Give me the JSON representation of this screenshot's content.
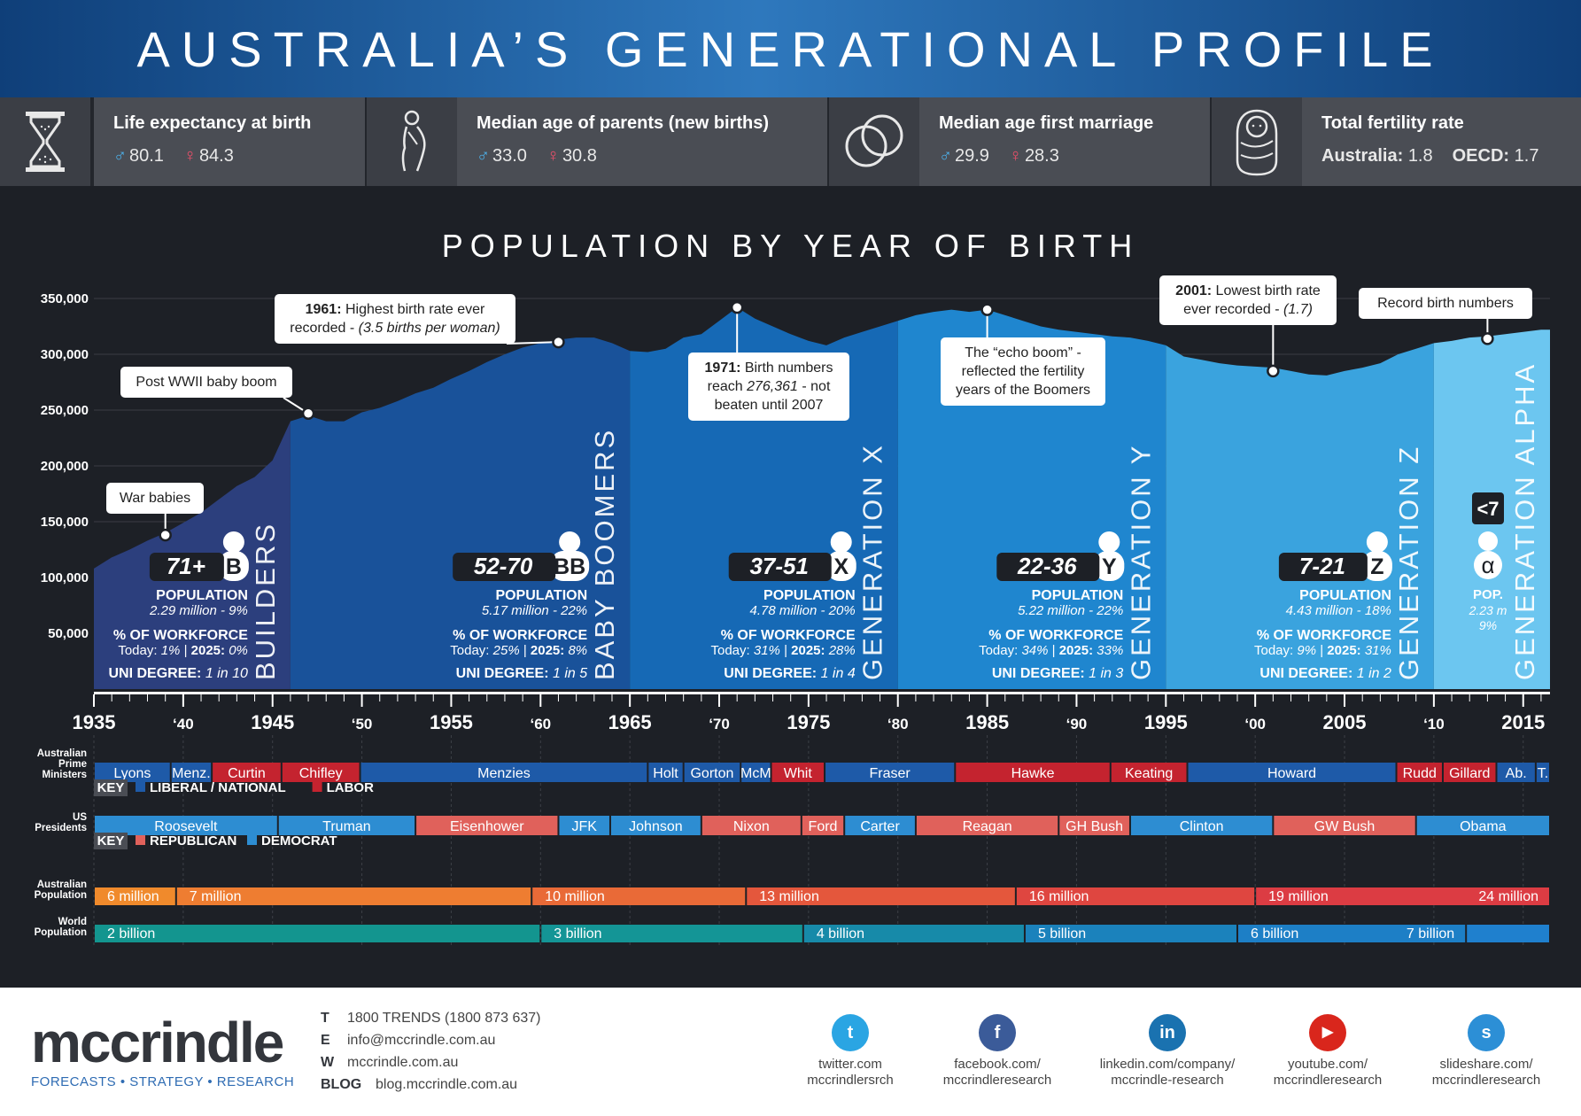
{
  "title": "AUSTRALIA’S GENERATIONAL PROFILE",
  "stats": [
    {
      "icon": "hourglass-icon",
      "title": "Life expectancy at birth",
      "male": "80.1",
      "female": "84.3"
    },
    {
      "icon": "pregnant-icon",
      "title": "Median age of parents (new births)",
      "male": "33.0",
      "female": "30.8"
    },
    {
      "icon": "rings-icon",
      "title": "Median age first marriage",
      "male": "29.9",
      "female": "28.3"
    },
    {
      "icon": "baby-icon",
      "title": "Total fertility rate",
      "australia_label": "Australia:",
      "australia": "1.8",
      "oecd_label": "OECD:",
      "oecd": "1.7"
    }
  ],
  "chart_data": {
    "type": "area",
    "title": "POPULATION BY YEAR OF BIRTH",
    "xlim": [
      1935,
      2016.5
    ],
    "ylim": [
      0,
      350000
    ],
    "y_ticks": [
      50000,
      100000,
      150000,
      200000,
      250000,
      300000,
      350000
    ],
    "y_tick_labels": [
      "50,000",
      "100,000",
      "150,000",
      "200,000",
      "250,000",
      "300,000",
      "350,000"
    ],
    "x_tick_labels": [
      {
        "year": 1935,
        "label": "1935",
        "major": true
      },
      {
        "year": 1940,
        "label": "‘40",
        "major": false
      },
      {
        "year": 1945,
        "label": "1945",
        "major": true
      },
      {
        "year": 1950,
        "label": "‘50",
        "major": false
      },
      {
        "year": 1955,
        "label": "1955",
        "major": true
      },
      {
        "year": 1960,
        "label": "‘60",
        "major": false
      },
      {
        "year": 1965,
        "label": "1965",
        "major": true
      },
      {
        "year": 1970,
        "label": "‘70",
        "major": false
      },
      {
        "year": 1975,
        "label": "1975",
        "major": true
      },
      {
        "year": 1980,
        "label": "‘80",
        "major": false
      },
      {
        "year": 1985,
        "label": "1985",
        "major": true
      },
      {
        "year": 1990,
        "label": "‘90",
        "major": false
      },
      {
        "year": 1995,
        "label": "1995",
        "major": true
      },
      {
        "year": 2000,
        "label": "‘00",
        "major": false
      },
      {
        "year": 2005,
        "label": "2005",
        "major": true
      },
      {
        "year": 2010,
        "label": "‘10",
        "major": false
      },
      {
        "year": 2015,
        "label": "2015",
        "major": true
      }
    ],
    "series": [
      {
        "x": [
          1935,
          1936,
          1937,
          1938,
          1939,
          1940,
          1941,
          1942,
          1943,
          1944,
          1945,
          1946,
          1947,
          1948,
          1949,
          1950,
          1951,
          1952,
          1953,
          1954,
          1955,
          1956,
          1957,
          1958,
          1959,
          1960,
          1961,
          1962,
          1963,
          1964,
          1965,
          1966,
          1967,
          1968,
          1969,
          1970,
          1971,
          1972,
          1973,
          1974,
          1975,
          1976,
          1977,
          1978,
          1979,
          1980,
          1981,
          1982,
          1983,
          1984,
          1985,
          1986,
          1987,
          1988,
          1989,
          1990,
          1991,
          1992,
          1993,
          1994,
          1995,
          1996,
          1997,
          1998,
          1999,
          2000,
          2001,
          2002,
          2003,
          2004,
          2005,
          2006,
          2007,
          2008,
          2009,
          2010,
          2011,
          2012,
          2013,
          2014,
          2015,
          2016
        ],
        "values": [
          108000,
          118000,
          125000,
          133000,
          140000,
          149000,
          158000,
          170000,
          182000,
          190000,
          205000,
          240000,
          245000,
          240000,
          240000,
          248000,
          252000,
          258000,
          265000,
          270000,
          278000,
          285000,
          293000,
          300000,
          306000,
          310000,
          313000,
          315000,
          315000,
          310000,
          303000,
          302000,
          305000,
          315000,
          318000,
          330000,
          342000,
          332000,
          325000,
          318000,
          312000,
          308000,
          315000,
          320000,
          325000,
          330000,
          335000,
          338000,
          340000,
          338000,
          340000,
          335000,
          330000,
          325000,
          322000,
          320000,
          318000,
          316000,
          315000,
          312000,
          308000,
          298000,
          295000,
          292000,
          290000,
          289000,
          288000,
          285000,
          282000,
          281000,
          285000,
          288000,
          292000,
          300000,
          305000,
          310000,
          312000,
          315000,
          316000,
          318000,
          320000,
          322000
        ]
      }
    ],
    "generations": [
      {
        "name": "BUILDERS",
        "start": 1935,
        "end": 1946,
        "color": "#2c3f7d",
        "age": "71+",
        "letter": "B",
        "pop_label": "POPULATION",
        "pop": "2.29 million - 9%",
        "workforce_label": "% OF WORKFORCE",
        "today_label": "Today:",
        "today": "1%",
        "sep": "|",
        "future_label": "2025:",
        "future": "0%",
        "uni_label": "UNI DEGREE:",
        "uni": "1 in 10"
      },
      {
        "name": "BABY BOOMERS",
        "start": 1946,
        "end": 1965,
        "color": "#19529a",
        "age": "52-70",
        "letter": "BB",
        "pop_label": "POPULATION",
        "pop": "5.17 million - 22%",
        "workforce_label": "% OF WORKFORCE",
        "today_label": "Today:",
        "today": "25%",
        "sep": "|",
        "future_label": "2025:",
        "future": "8%",
        "uni_label": "UNI DEGREE:",
        "uni": "1 in 5"
      },
      {
        "name": "GENERATION X",
        "start": 1965,
        "end": 1980,
        "color": "#1669b5",
        "age": "37-51",
        "letter": "X",
        "pop_label": "POPULATION",
        "pop": "4.78 million - 20%",
        "workforce_label": "% OF WORKFORCE",
        "today_label": "Today:",
        "today": "31%",
        "sep": "|",
        "future_label": "2025:",
        "future": "28%",
        "uni_label": "UNI DEGREE:",
        "uni": "1 in 4"
      },
      {
        "name": "GENERATION Y",
        "start": 1980,
        "end": 1995,
        "color": "#1f86cf",
        "age": "22-36",
        "letter": "Y",
        "pop_label": "POPULATION",
        "pop": "5.22 million - 22%",
        "workforce_label": "% OF WORKFORCE",
        "today_label": "Today:",
        "today": "34%",
        "sep": "|",
        "future_label": "2025:",
        "future": "33%",
        "uni_label": "UNI DEGREE:",
        "uni": "1 in 3"
      },
      {
        "name": "GENERATION Z",
        "start": 1995,
        "end": 2010,
        "color": "#3aa3de",
        "age": "7-21",
        "letter": "Z",
        "pop_label": "POPULATION",
        "pop": "4.43 million - 18%",
        "workforce_label": "% OF WORKFORCE",
        "today_label": "Today:",
        "today": "9%",
        "sep": "|",
        "future_label": "2025:",
        "future": "31%",
        "uni_label": "UNI DEGREE:",
        "uni": "1 in 2"
      },
      {
        "name": "GENERATION ALPHA",
        "start": 2010,
        "end": 2016.5,
        "color": "#6cc6f0",
        "age": "<7",
        "letter": "α",
        "pop_label": "POP.",
        "pop": "2.23 m",
        "pop2": "9%"
      }
    ],
    "annotations": [
      {
        "year": 1939,
        "value": 138000,
        "parts": [
          {
            "t": "War babies"
          }
        ]
      },
      {
        "year": 1947,
        "value": 247000,
        "parts": [
          {
            "t": "Post WWII baby boom"
          }
        ]
      },
      {
        "year": 1961,
        "value": 311000,
        "parts": [
          {
            "t": "1961:",
            "b": true
          },
          {
            "t": " Highest birth rate ever"
          },
          {
            "t": "\n"
          },
          {
            "t": "recorded - "
          },
          {
            "t": "(3.5 births per woman)",
            "i": true
          }
        ]
      },
      {
        "year": 1971,
        "value": 342000,
        "parts": [
          {
            "t": "1971:",
            "b": true
          },
          {
            "t": " Birth numbers"
          },
          {
            "t": "\n"
          },
          {
            "t": "reach "
          },
          {
            "t": "276,361",
            "i": true
          },
          {
            "t": " - not"
          },
          {
            "t": "\n"
          },
          {
            "t": "beaten until 2007"
          }
        ]
      },
      {
        "year": 1985,
        "value": 340000,
        "parts": [
          {
            "t": "The “echo boom” -"
          },
          {
            "t": "\n"
          },
          {
            "t": "reflected the fertility"
          },
          {
            "t": "\n"
          },
          {
            "t": "years of the Boomers"
          }
        ]
      },
      {
        "year": 2001,
        "value": 285000,
        "parts": [
          {
            "t": "2001:",
            "b": true
          },
          {
            "t": " Lowest birth rate"
          },
          {
            "t": "\n"
          },
          {
            "t": "ever recorded - "
          },
          {
            "t": "(1.7)",
            "i": true
          }
        ]
      },
      {
        "year": 2013,
        "value": 314000,
        "parts": [
          {
            "t": "Record birth numbers"
          }
        ]
      }
    ],
    "timelines": [
      {
        "label": [
          "Australian",
          "Prime",
          "Ministers"
        ],
        "bars": [
          {
            "name": "Lyons",
            "start": 1935,
            "end": 1939.3,
            "party": "liberal"
          },
          {
            "name": "Menz.",
            "start": 1939.3,
            "end": 1941.6,
            "party": "liberal"
          },
          {
            "name": "Curtin",
            "start": 1941.6,
            "end": 1945.5,
            "party": "labor"
          },
          {
            "name": "Chifley",
            "start": 1945.5,
            "end": 1949.9,
            "party": "labor"
          },
          {
            "name": "Menzies",
            "start": 1949.9,
            "end": 1966,
            "party": "liberal"
          },
          {
            "name": "Holt",
            "start": 1966,
            "end": 1968,
            "party": "liberal"
          },
          {
            "name": "Gorton",
            "start": 1968,
            "end": 1971.2,
            "party": "liberal"
          },
          {
            "name": "McM",
            "start": 1971.2,
            "end": 1972.9,
            "party": "liberal"
          },
          {
            "name": "Whit",
            "start": 1972.9,
            "end": 1975.9,
            "party": "labor"
          },
          {
            "name": "Fraser",
            "start": 1975.9,
            "end": 1983.2,
            "party": "liberal"
          },
          {
            "name": "Hawke",
            "start": 1983.2,
            "end": 1991.9,
            "party": "labor"
          },
          {
            "name": "Keating",
            "start": 1991.9,
            "end": 1996.2,
            "party": "labor"
          },
          {
            "name": "Howard",
            "start": 1996.2,
            "end": 2007.9,
            "party": "liberal"
          },
          {
            "name": "Rudd",
            "start": 2007.9,
            "end": 2010.5,
            "party": "labor"
          },
          {
            "name": "Gillard",
            "start": 2010.5,
            "end": 2013.5,
            "party": "labor"
          },
          {
            "name": "Ab.",
            "start": 2013.5,
            "end": 2015.7,
            "party": "liberal"
          },
          {
            "name": "T.",
            "start": 2015.7,
            "end": 2016.5,
            "party": "liberal"
          }
        ],
        "key_label": "KEY",
        "key": [
          {
            "name": "LIBERAL / NATIONAL",
            "color": "#1e5aa8"
          },
          {
            "name": "LABOR",
            "color": "#c4232f"
          }
        ]
      },
      {
        "label": [
          "US",
          "Presidents"
        ],
        "bars": [
          {
            "name": "Roosevelt",
            "start": 1935,
            "end": 1945.3,
            "party": "democrat"
          },
          {
            "name": "Truman",
            "start": 1945.3,
            "end": 1953,
            "party": "democrat"
          },
          {
            "name": "Eisenhower",
            "start": 1953,
            "end": 1961,
            "party": "republican"
          },
          {
            "name": "JFK",
            "start": 1961,
            "end": 1963.9,
            "party": "democrat"
          },
          {
            "name": "Johnson",
            "start": 1963.9,
            "end": 1969,
            "party": "democrat"
          },
          {
            "name": "Nixon",
            "start": 1969,
            "end": 1974.6,
            "party": "republican"
          },
          {
            "name": "Ford",
            "start": 1974.6,
            "end": 1977,
            "party": "republican"
          },
          {
            "name": "Carter",
            "start": 1977,
            "end": 1981,
            "party": "democrat"
          },
          {
            "name": "Reagan",
            "start": 1981,
            "end": 1989,
            "party": "republican"
          },
          {
            "name": "GH Bush",
            "start": 1989,
            "end": 1993,
            "party": "republican"
          },
          {
            "name": "Clinton",
            "start": 1993,
            "end": 2001,
            "party": "democrat"
          },
          {
            "name": "GW Bush",
            "start": 2001,
            "end": 2009,
            "party": "republican"
          },
          {
            "name": "Obama",
            "start": 2009,
            "end": 2016.5,
            "party": "democrat"
          }
        ],
        "key_label": "KEY",
        "key": [
          {
            "name": "REPUBLICAN",
            "color": "#e0615b"
          },
          {
            "name": "DEMOCRAT",
            "color": "#2d8dd2"
          }
        ]
      },
      {
        "label": [
          "Australian",
          "Population"
        ],
        "bars": [
          {
            "name": "6 million",
            "start": 1935,
            "end": 1939.6,
            "color": "#f08a2c"
          },
          {
            "name": "7 million",
            "start": 1939.6,
            "end": 1959.5,
            "color": "#ee7d31"
          },
          {
            "name": "10 million",
            "start": 1959.5,
            "end": 1971.5,
            "color": "#e96a37"
          },
          {
            "name": "13 million",
            "start": 1971.5,
            "end": 1986.6,
            "color": "#e4573c"
          },
          {
            "name": "16 million",
            "start": 1986.6,
            "end": 2000,
            "color": "#df4640"
          },
          {
            "name": "19 million",
            "start": 2000,
            "end": 2016.5,
            "color": "#dc3c43",
            "label_right": "24 million"
          }
        ]
      },
      {
        "label": [
          "World",
          "Population"
        ],
        "bars": [
          {
            "name": "2 billion",
            "start": 1935,
            "end": 1960,
            "color": "#13958f"
          },
          {
            "name": "3 billion",
            "start": 1960,
            "end": 1974.7,
            "color": "#149596"
          },
          {
            "name": "4 billion",
            "start": 1974.7,
            "end": 1987.1,
            "color": "#178aa9"
          },
          {
            "name": "5 billion",
            "start": 1987.1,
            "end": 1999,
            "color": "#1b82bc"
          },
          {
            "name": "6 billion",
            "start": 1999,
            "end": 2011.8,
            "color": "#1d7fc6",
            "label_right": "7 billion"
          },
          {
            "name": "",
            "start": 2011.8,
            "end": 2016.5,
            "color": "#1f80ce"
          }
        ]
      }
    ]
  },
  "footer": {
    "logo": "mccrindle",
    "tagline": "FORECASTS • STRATEGY • RESEARCH",
    "contacts": [
      {
        "key": "T",
        "value": "1800 TRENDS (1800 873 637)"
      },
      {
        "key": "E",
        "value": "info@mccrindle.com.au"
      },
      {
        "key": "W",
        "value": "mccrindle.com.au"
      },
      {
        "key": "BLOG",
        "value": "blog.mccrindle.com.au"
      }
    ],
    "social": [
      {
        "icon": "twitter-icon",
        "glyph": "t",
        "color": "#2aa5e3",
        "line1": "twitter.com",
        "line2": "mccrindlersrch"
      },
      {
        "icon": "facebook-icon",
        "glyph": "f",
        "color": "#3b5b99",
        "line1": "facebook.com/",
        "line2": "mccrindleresearch"
      },
      {
        "icon": "linkedin-icon",
        "glyph": "in",
        "color": "#1a72b0",
        "line1": "linkedin.com/company/",
        "line2": "mccrindle-research"
      },
      {
        "icon": "youtube-icon",
        "glyph": "▶",
        "color": "#d9261c",
        "line1": "youtube.com/",
        "line2": "mccrindleresearch"
      },
      {
        "icon": "slideshare-icon",
        "glyph": "s",
        "color": "#2c8fd6",
        "line1": "slideshare.com/",
        "line2": "mccrindleresearch"
      }
    ]
  }
}
